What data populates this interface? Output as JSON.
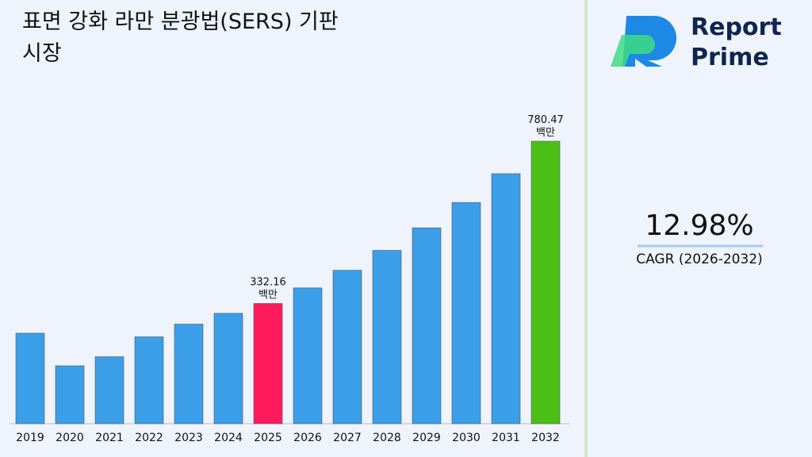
{
  "chart_data": {
    "type": "bar",
    "title": "표면 강화 라만 분광법(SERS) 기판 시장",
    "categories": [
      "2019",
      "2020",
      "2021",
      "2022",
      "2023",
      "2024",
      "2025",
      "2026",
      "2027",
      "2028",
      "2029",
      "2030",
      "2031",
      "2032"
    ],
    "values": [
      250,
      160,
      185,
      240,
      275,
      305,
      332.16,
      375.2,
      423.9,
      478.9,
      541.1,
      611.3,
      690.7,
      780.47
    ],
    "colors": [
      "#3a9fe8",
      "#3a9fe8",
      "#3a9fe8",
      "#3a9fe8",
      "#3a9fe8",
      "#3a9fe8",
      "#ff1a5e",
      "#3a9fe8",
      "#3a9fe8",
      "#3a9fe8",
      "#3a9fe8",
      "#3a9fe8",
      "#3a9fe8",
      "#4cbf17"
    ],
    "labeled": [
      6,
      13
    ],
    "unit": "백만",
    "cagr": "12.98%",
    "cagr_label": "CAGR (2026-2032)"
  },
  "brand": {
    "line1": "Report",
    "line2": "Prime"
  }
}
